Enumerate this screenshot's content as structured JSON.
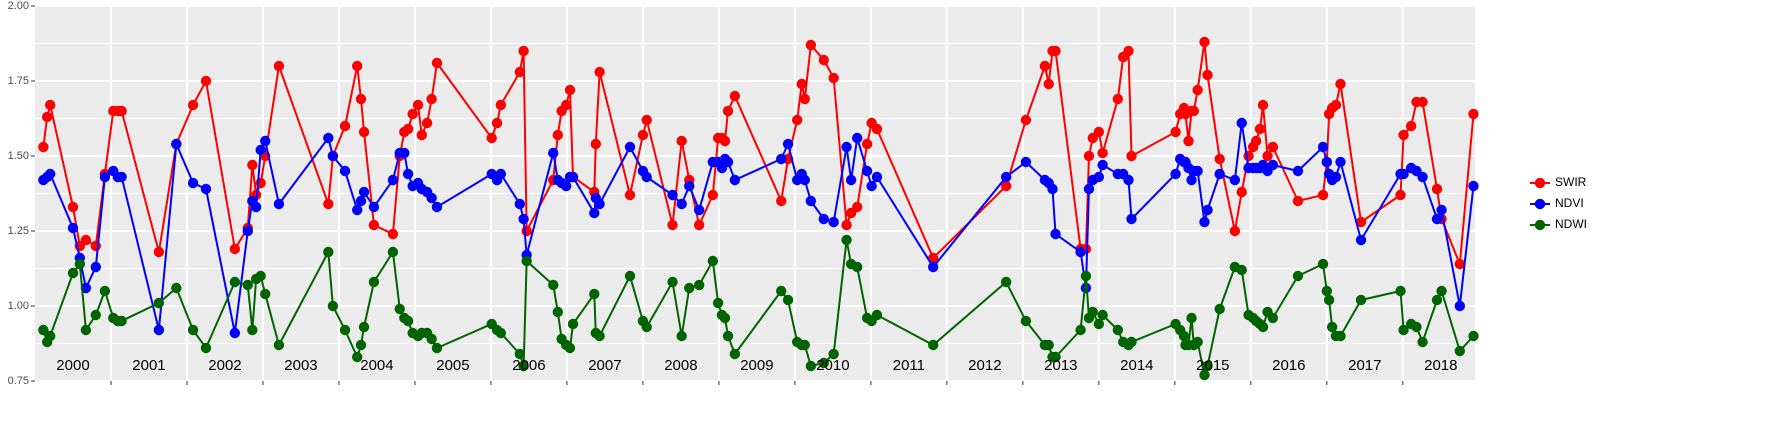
{
  "chart_data": {
    "type": "line",
    "x": [
      2000.11,
      2000.16,
      2000.2,
      2000.5,
      2000.59,
      2000.67,
      2000.8,
      2000.92,
      2001.03,
      2001.09,
      2001.14,
      2001.63,
      2001.86,
      2002.08,
      2002.25,
      2002.63,
      2002.8,
      2002.86,
      2002.91,
      2002.97,
      2003.03,
      2003.21,
      2003.86,
      2003.92,
      2004.08,
      2004.24,
      2004.29,
      2004.33,
      2004.46,
      2004.71,
      2004.8,
      2004.86,
      2004.91,
      2004.97,
      2005.04,
      2005.09,
      2005.16,
      2005.22,
      2005.29,
      2006.01,
      2006.08,
      2006.13,
      2006.38,
      2006.43,
      2006.47,
      2006.82,
      2006.88,
      2006.93,
      2006.99,
      2007.04,
      2007.08,
      2007.36,
      2007.38,
      2007.43,
      2007.83,
      2008.0,
      2008.05,
      2008.39,
      2008.51,
      2008.61,
      2008.74,
      2008.92,
      2008.99,
      2009.04,
      2009.08,
      2009.12,
      2009.21,
      2009.82,
      2009.91,
      2010.03,
      2010.09,
      2010.13,
      2010.21,
      2010.38,
      2010.51,
      2010.68,
      2010.74,
      2010.82,
      2010.95,
      2011.01,
      2011.08,
      2011.82,
      2012.78,
      2013.04,
      2013.29,
      2013.34,
      2013.39,
      2013.43,
      2013.76,
      2013.83,
      2013.87,
      2013.92,
      2014.0,
      2014.05,
      2014.25,
      2014.32,
      2014.39,
      2014.43,
      2015.01,
      2015.07,
      2015.12,
      2015.14,
      2015.18,
      2015.22,
      2015.25,
      2015.3,
      2015.39,
      2015.43,
      2015.59,
      2015.79,
      2015.88,
      2015.97,
      2016.03,
      2016.07,
      2016.12,
      2016.16,
      2016.22,
      2016.29,
      2016.62,
      2016.95,
      2017.0,
      2017.03,
      2017.07,
      2017.12,
      2017.18,
      2017.45,
      2017.97,
      2018.01,
      2018.11,
      2018.18,
      2018.26,
      2018.45,
      2018.51,
      2018.75,
      2018.93
    ],
    "series": [
      {
        "name": "SWIR",
        "color": "#ff0000",
        "values": [
          1.53,
          1.63,
          1.67,
          1.33,
          1.2,
          1.22,
          1.2,
          1.44,
          1.65,
          1.65,
          1.65,
          1.18,
          1.54,
          1.67,
          1.75,
          1.19,
          1.26,
          1.47,
          1.37,
          1.41,
          1.5,
          1.8,
          1.34,
          1.5,
          1.6,
          1.8,
          1.69,
          1.58,
          1.27,
          1.24,
          1.5,
          1.58,
          1.59,
          1.64,
          1.67,
          1.57,
          1.61,
          1.69,
          1.81,
          1.56,
          1.61,
          1.67,
          1.78,
          1.85,
          1.25,
          1.42,
          1.57,
          1.65,
          1.67,
          1.72,
          1.43,
          1.38,
          1.54,
          1.78,
          1.37,
          1.57,
          1.62,
          1.27,
          1.55,
          1.42,
          1.27,
          1.37,
          1.56,
          1.56,
          1.55,
          1.65,
          1.7,
          1.35,
          1.49,
          1.62,
          1.74,
          1.69,
          1.87,
          1.82,
          1.76,
          1.27,
          1.31,
          1.33,
          1.54,
          1.61,
          1.59,
          1.16,
          1.4,
          1.62,
          1.8,
          1.74,
          1.85,
          1.85,
          1.19,
          1.19,
          1.5,
          1.56,
          1.58,
          1.51,
          1.69,
          1.83,
          1.85,
          1.5,
          1.58,
          1.64,
          1.66,
          1.64,
          1.55,
          1.65,
          1.65,
          1.72,
          1.88,
          1.77,
          1.49,
          1.25,
          1.38,
          1.5,
          1.53,
          1.55,
          1.59,
          1.67,
          1.5,
          1.53,
          1.35,
          1.37,
          1.48,
          1.64,
          1.66,
          1.67,
          1.74,
          1.28,
          1.37,
          1.57,
          1.6,
          1.68,
          1.68,
          1.39,
          1.29,
          1.14,
          1.64
        ]
      },
      {
        "name": "NDVI",
        "color": "#0000ff",
        "values": [
          1.42,
          1.43,
          1.44,
          1.26,
          1.16,
          1.06,
          1.13,
          1.43,
          1.45,
          1.43,
          1.43,
          0.92,
          1.54,
          1.41,
          1.39,
          0.91,
          1.25,
          1.35,
          1.33,
          1.52,
          1.55,
          1.34,
          1.56,
          1.5,
          1.45,
          1.32,
          1.35,
          1.38,
          1.33,
          1.42,
          1.51,
          1.51,
          1.44,
          1.4,
          1.41,
          1.39,
          1.38,
          1.36,
          1.33,
          1.44,
          1.42,
          1.44,
          1.34,
          1.29,
          1.17,
          1.51,
          1.42,
          1.41,
          1.4,
          1.43,
          1.43,
          1.31,
          1.36,
          1.34,
          1.53,
          1.45,
          1.43,
          1.37,
          1.34,
          1.4,
          1.32,
          1.48,
          1.48,
          1.46,
          1.49,
          1.48,
          1.42,
          1.49,
          1.54,
          1.42,
          1.44,
          1.42,
          1.35,
          1.29,
          1.28,
          1.53,
          1.42,
          1.56,
          1.45,
          1.4,
          1.43,
          1.13,
          1.43,
          1.48,
          1.42,
          1.41,
          1.39,
          1.24,
          1.18,
          1.06,
          1.39,
          1.42,
          1.43,
          1.47,
          1.44,
          1.44,
          1.42,
          1.29,
          1.44,
          1.49,
          1.48,
          1.48,
          1.46,
          1.42,
          1.45,
          1.45,
          1.28,
          1.32,
          1.44,
          1.42,
          1.61,
          1.46,
          1.46,
          1.46,
          1.46,
          1.47,
          1.45,
          1.47,
          1.45,
          1.53,
          1.48,
          1.44,
          1.42,
          1.43,
          1.48,
          1.22,
          1.44,
          1.44,
          1.46,
          1.45,
          1.43,
          1.29,
          1.32,
          1.0,
          1.4
        ]
      },
      {
        "name": "NDWI",
        "color": "#006400",
        "values": [
          0.92,
          0.88,
          0.9,
          1.11,
          1.14,
          0.92,
          0.97,
          1.05,
          0.96,
          0.95,
          0.95,
          1.01,
          1.06,
          0.92,
          0.86,
          1.08,
          1.07,
          0.92,
          1.09,
          1.1,
          1.04,
          0.87,
          1.18,
          1.0,
          0.92,
          0.83,
          0.87,
          0.93,
          1.08,
          1.18,
          0.99,
          0.96,
          0.95,
          0.91,
          0.9,
          0.91,
          0.91,
          0.89,
          0.86,
          0.94,
          0.92,
          0.91,
          0.84,
          0.8,
          1.15,
          1.07,
          0.98,
          0.89,
          0.87,
          0.86,
          0.94,
          1.04,
          0.91,
          0.9,
          1.1,
          0.95,
          0.93,
          1.08,
          0.9,
          1.06,
          1.07,
          1.15,
          1.01,
          0.97,
          0.96,
          0.9,
          0.84,
          1.05,
          1.02,
          0.88,
          0.87,
          0.87,
          0.8,
          0.81,
          0.84,
          1.22,
          1.14,
          1.13,
          0.96,
          0.95,
          0.97,
          0.87,
          1.08,
          0.95,
          0.87,
          0.87,
          0.83,
          0.83,
          0.92,
          1.1,
          0.96,
          0.98,
          0.94,
          0.97,
          0.92,
          0.88,
          0.87,
          0.88,
          0.94,
          0.92,
          0.9,
          0.87,
          0.87,
          0.96,
          0.87,
          0.88,
          0.77,
          0.8,
          0.99,
          1.13,
          1.12,
          0.97,
          0.96,
          0.95,
          0.94,
          0.93,
          0.98,
          0.96,
          1.1,
          1.14,
          1.05,
          1.02,
          0.93,
          0.9,
          0.9,
          1.02,
          1.05,
          0.92,
          0.94,
          0.93,
          0.88,
          1.02,
          1.05,
          0.85,
          0.9
        ]
      }
    ],
    "xlim": [
      2000.0,
      2018.95
    ],
    "xticks": [
      2001,
      2002,
      2003,
      2004,
      2005,
      2006,
      2007,
      2008,
      2009,
      2010,
      2011,
      2012,
      2013,
      2014,
      2015,
      2016,
      2017,
      2018
    ],
    "ylim": [
      0.75,
      2.0
    ],
    "yticks": [
      {
        "value": 0.75,
        "label": "0.75"
      },
      {
        "value": 1.0,
        "label": "1.00"
      },
      {
        "value": 1.25,
        "label": "1.25"
      },
      {
        "value": 1.5,
        "label": "1.50"
      },
      {
        "value": 1.75,
        "label": "1.75"
      },
      {
        "value": 2.0,
        "label": "2.00"
      }
    ],
    "annotations": [
      {
        "text": "2000",
        "x": 2000.5
      },
      {
        "text": "2001",
        "x": 2001.5
      },
      {
        "text": "2002",
        "x": 2002.5
      },
      {
        "text": "2003",
        "x": 2003.5
      },
      {
        "text": "2004",
        "x": 2004.5
      },
      {
        "text": "2005",
        "x": 2005.5
      },
      {
        "text": "2006",
        "x": 2006.5
      },
      {
        "text": "2007",
        "x": 2007.5
      },
      {
        "text": "2008",
        "x": 2008.5
      },
      {
        "text": "2009",
        "x": 2009.5
      },
      {
        "text": "2010",
        "x": 2010.5
      },
      {
        "text": "2011",
        "x": 2011.5
      },
      {
        "text": "2012",
        "x": 2012.5
      },
      {
        "text": "2013",
        "x": 2013.5
      },
      {
        "text": "2014",
        "x": 2014.5
      },
      {
        "text": "2015",
        "x": 2015.5
      },
      {
        "text": "2016",
        "x": 2016.5
      },
      {
        "text": "2017",
        "x": 2017.5
      },
      {
        "text": "2018",
        "x": 2018.5
      }
    ],
    "grid": true,
    "legend": "right"
  }
}
